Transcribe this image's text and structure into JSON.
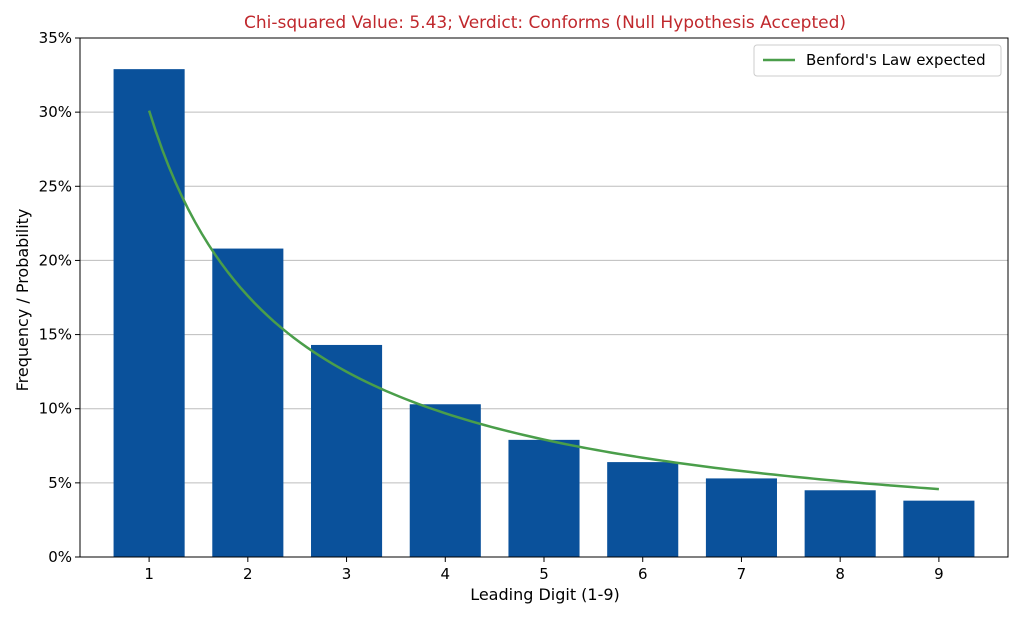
{
  "chart_data": {
    "type": "bar",
    "title": "Chi-squared Value: 5.43; Verdict: Conforms (Null Hypothesis Accepted)",
    "xlabel": "Leading Digit (1-9)",
    "ylabel": "Frequency / Probability",
    "categories": [
      "1",
      "2",
      "3",
      "4",
      "5",
      "6",
      "7",
      "8",
      "9"
    ],
    "series": [
      {
        "type": "bar",
        "values": [
          0.329,
          0.208,
          0.143,
          0.103,
          0.079,
          0.064,
          0.053,
          0.045,
          0.038
        ]
      },
      {
        "name": "Benford's Law expected",
        "type": "line",
        "values": [
          0.301,
          0.176,
          0.125,
          0.097,
          0.079,
          0.067,
          0.058,
          0.051,
          0.046
        ]
      }
    ],
    "ylim": [
      0,
      0.35
    ],
    "yticks": [
      0,
      0.05,
      0.1,
      0.15,
      0.2,
      0.25,
      0.3,
      0.35
    ],
    "ytick_labels": [
      "0%",
      "5%",
      "10%",
      "15%",
      "20%",
      "25%",
      "30%",
      "35%"
    ],
    "grid": "horizontal",
    "legend_position": "top-right",
    "colors": {
      "bar": "#0a519b",
      "line": "#4a9e4a",
      "title": "#c0282d",
      "grid": "#bdbdbd"
    }
  }
}
